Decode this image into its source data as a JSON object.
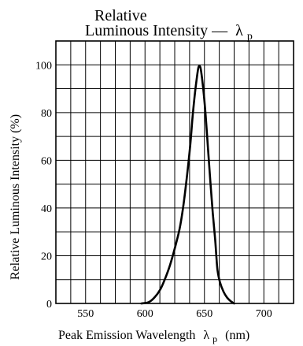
{
  "chart_data": {
    "type": "line",
    "title_line1": "Relative",
    "title_line2": "Luminous Intensity —",
    "title_symbol": "λ",
    "title_subscript": "p",
    "xlabel": "Peak Emission Wavelength",
    "xlabel_symbol": "λ",
    "xlabel_subscript": "p",
    "xlabel_unit": "(nm)",
    "ylabel": "Relative Luminous Intensity  (%)",
    "xlim": [
      525,
      725
    ],
    "ylim": [
      0,
      110
    ],
    "grid": true,
    "x_ticks": [
      550,
      600,
      650,
      700
    ],
    "x_tick_labels": [
      "550",
      "600",
      "650",
      "700"
    ],
    "y_ticks": [
      0,
      20,
      40,
      60,
      80,
      100
    ],
    "y_tick_labels": [
      "0",
      "20",
      "40",
      "60",
      "80",
      "100"
    ],
    "x_grid_values": [
      525,
      537.5,
      550,
      562.5,
      575,
      587.5,
      600,
      612.5,
      625,
      637.5,
      650,
      662.5,
      675,
      687.5,
      700,
      712.5,
      725
    ],
    "y_grid_values": [
      0,
      10,
      20,
      30,
      40,
      50,
      60,
      70,
      80,
      90,
      100,
      110
    ],
    "series": [
      {
        "x": [
          597,
          603,
          608,
          613,
          617,
          621,
          625,
          629,
          632,
          635,
          638,
          640,
          642,
          644,
          645,
          646,
          647,
          649,
          651,
          653,
          655,
          657,
          659,
          660,
          661,
          663,
          666,
          669,
          672,
          675
        ],
        "y": [
          0,
          0.5,
          2.5,
          6,
          10.5,
          16,
          23,
          31,
          40,
          52,
          66,
          78,
          88,
          96,
          99,
          99.5,
          98,
          90,
          79,
          65,
          51,
          38,
          27,
          20,
          14,
          9,
          5,
          2.5,
          1,
          0
        ]
      }
    ]
  }
}
